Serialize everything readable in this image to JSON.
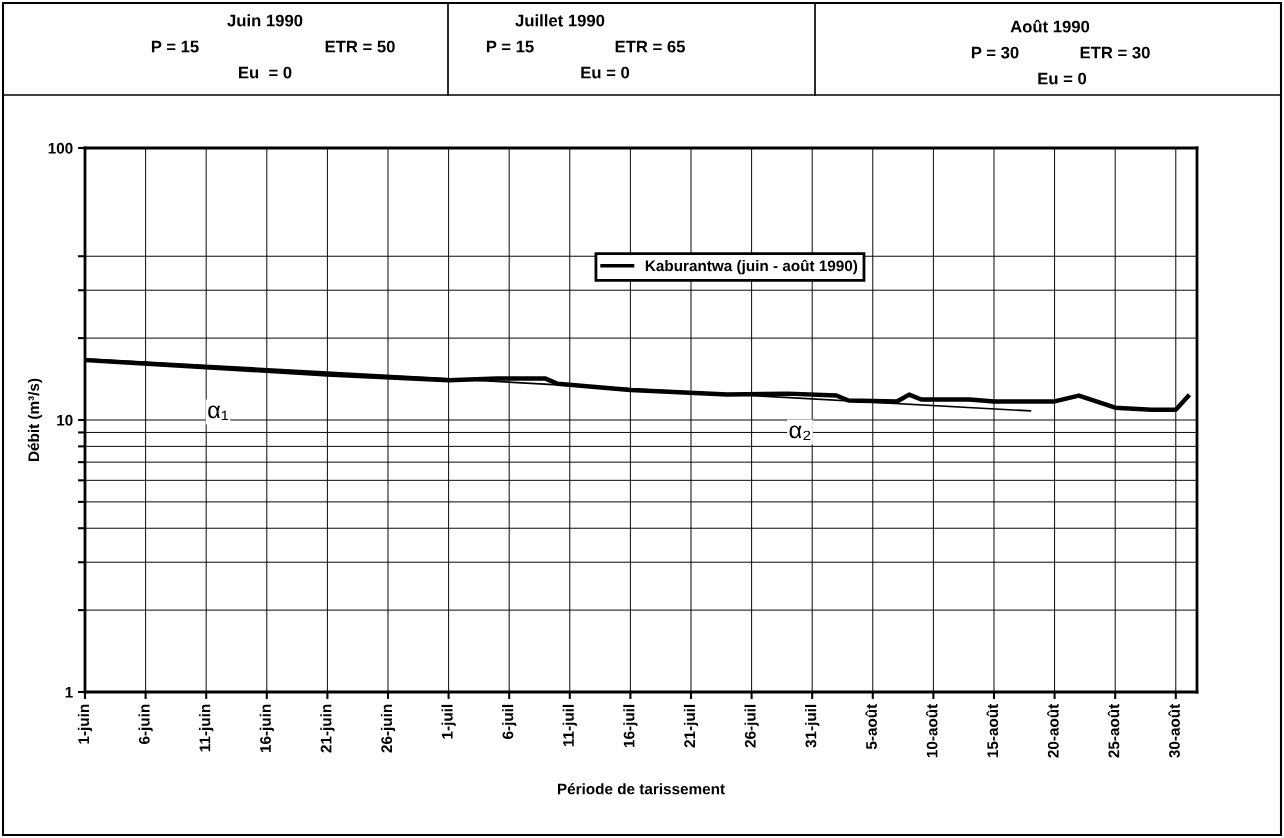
{
  "chart_data": {
    "type": "line",
    "xlabel": "Période de tarissement",
    "ylabel": "Débit (m³/s)",
    "annotations": [
      "Juin 1990",
      "P = 15",
      "ETR = 50",
      "Eu  = 0",
      "Juillet 1990",
      "P = 15",
      "ETR = 65",
      "Eu = 0",
      "Août 1990",
      "P = 30",
      "ETR = 30",
      "Eu = 0",
      "α₁",
      "α₂"
    ],
    "series": [
      {
        "name": "Kaburantwa (juin - août 1990)",
        "color": "#000000",
        "x": [
          "1990-06-01",
          "1990-06-21",
          "1990-07-01",
          "1990-07-05",
          "1990-07-09",
          "1990-07-10",
          "1990-07-16",
          "1990-07-24",
          "1990-07-29",
          "1990-08-02",
          "1990-08-03",
          "1990-08-07",
          "1990-08-08",
          "1990-08-09",
          "1990-08-13",
          "1990-08-15",
          "1990-08-20",
          "1990-08-22",
          "1990-08-25",
          "1990-08-28",
          "1990-08-30",
          "1990-08-31"
        ],
        "values": [
          16.6,
          14.7,
          14.0,
          14.2,
          14.2,
          13.6,
          12.9,
          12.4,
          12.5,
          12.3,
          11.8,
          11.7,
          12.4,
          11.9,
          11.9,
          11.7,
          11.7,
          12.3,
          11.1,
          10.9,
          10.9,
          12.2
        ]
      },
      {
        "color": "#000000",
        "x": [
          "1990-06-01",
          "1990-08-18"
        ],
        "values": [
          16.8,
          10.8
        ]
      }
    ],
    "xlim": [
      "1990-06-01",
      "1990-08-31T18:00"
    ],
    "xticks": [
      {
        "value": "1990-06-01",
        "label": "1-juin"
      },
      {
        "value": "1990-06-06",
        "label": "6-juin"
      },
      {
        "value": "1990-06-11",
        "label": "11-juin"
      },
      {
        "value": "1990-06-16",
        "label": "16-juin"
      },
      {
        "value": "1990-06-21",
        "label": "21-juin"
      },
      {
        "value": "1990-06-26",
        "label": "26-juin"
      },
      {
        "value": "1990-07-01",
        "label": "1-juil"
      },
      {
        "value": "1990-07-06",
        "label": "6-juil"
      },
      {
        "value": "1990-07-11",
        "label": "11-juil"
      },
      {
        "value": "1990-07-16",
        "label": "16-juil"
      },
      {
        "value": "1990-07-21",
        "label": "21-juil"
      },
      {
        "value": "1990-07-26",
        "label": "26-juil"
      },
      {
        "value": "1990-07-31",
        "label": "31-juil"
      },
      {
        "value": "1990-08-05",
        "label": "5-août"
      },
      {
        "value": "1990-08-10",
        "label": "10-août"
      },
      {
        "value": "1990-08-15",
        "label": "15-août"
      },
      {
        "value": "1990-08-20",
        "label": "20-août"
      },
      {
        "value": "1990-08-25",
        "label": "25-août"
      },
      {
        "value": "1990-08-30",
        "label": "30-août"
      }
    ],
    "ylim": [
      1,
      100
    ],
    "yticks": [
      1,
      {
        "value": 2,
        "label": null
      },
      {
        "value": 3,
        "label": null
      },
      {
        "value": 4,
        "label": null
      },
      {
        "value": 5,
        "label": null
      },
      {
        "value": 6,
        "label": null
      },
      {
        "value": 7,
        "label": null
      },
      {
        "value": 8,
        "label": null
      },
      {
        "value": 9,
        "label": null
      },
      10,
      {
        "value": 20,
        "label": null
      },
      {
        "value": 30,
        "label": null
      },
      {
        "value": 40,
        "label": null
      },
      100
    ],
    "log": "y",
    "grid": true,
    "legend": "top",
    "marker": "none",
    "line_style": "solid"
  }
}
